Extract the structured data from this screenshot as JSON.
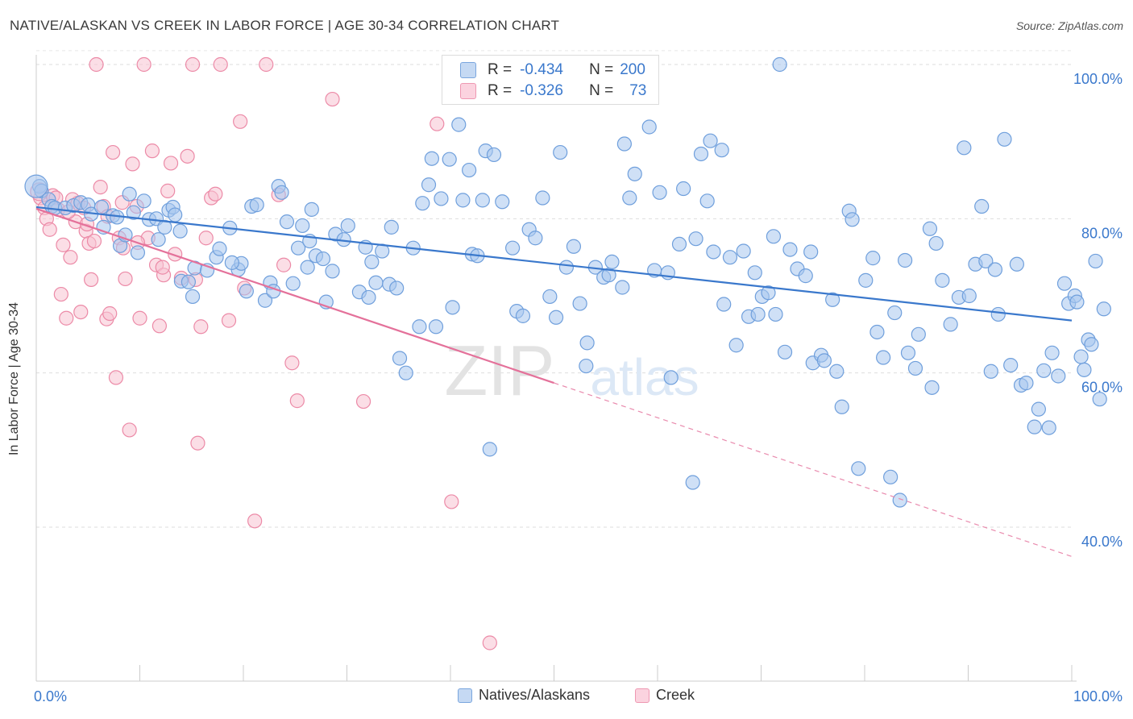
{
  "title": "NATIVE/ALASKAN VS CREEK IN LABOR FORCE | AGE 30-34 CORRELATION CHART",
  "source": "Source: ZipAtlas.com",
  "watermark": {
    "part1": "ZIP",
    "part2": "atlas"
  },
  "legend_top": {
    "rows": [
      {
        "r_label": "R =",
        "r_value": "-0.434",
        "n_label": "N =",
        "n_value": "200",
        "color": "#8ab4e8"
      },
      {
        "r_label": "R =",
        "r_value": "-0.326",
        "n_label": "N =",
        "n_value": "73",
        "color": "#f5a9bf"
      }
    ]
  },
  "legend_bottom": [
    {
      "label": "Natives/Alaskans",
      "color": "#a8c6ee",
      "border": "#6f9fdc"
    },
    {
      "label": "Creek",
      "color": "#f8c3d2",
      "border": "#ec8aa7"
    }
  ],
  "chart_data": {
    "type": "scatter",
    "title": "NATIVE/ALASKAN VS CREEK IN LABOR FORCE | AGE 30-34 CORRELATION CHART",
    "xlabel": "",
    "ylabel": "In Labor Force | Age 30-34",
    "xlim": [
      0,
      100
    ],
    "ylim": [
      20,
      102
    ],
    "x_tick_labels": [
      "0.0%",
      "100.0%"
    ],
    "y_tick_labels": [
      "100.0%",
      "80.0%",
      "60.0%",
      "40.0%"
    ],
    "y_tick_values": [
      100,
      80,
      60,
      40
    ],
    "grid": true,
    "legend_position": "top-center",
    "series": [
      {
        "name": "Natives/Alaskans",
        "color": "#6f9fdc",
        "fill": "#a8c6ee",
        "trend": {
          "x0": 0,
          "y0": 81.5,
          "x1": 100,
          "y1": 66.8
        },
        "points": [
          [
            0.2,
            84.2
          ],
          [
            0.5,
            83.6
          ],
          [
            1.2,
            82.5
          ],
          [
            1.5,
            81.6
          ],
          [
            1.8,
            81.4
          ],
          [
            2.8,
            81.4
          ],
          [
            3.6,
            81.7
          ],
          [
            4.3,
            82.1
          ],
          [
            5.0,
            81.8
          ],
          [
            5.3,
            80.6
          ],
          [
            6.3,
            81.5
          ],
          [
            6.5,
            78.9
          ],
          [
            7.4,
            80.4
          ],
          [
            7.8,
            80.2
          ],
          [
            8.1,
            76.5
          ],
          [
            9.0,
            83.2
          ],
          [
            9.4,
            80.8
          ],
          [
            9.8,
            75.6
          ],
          [
            10.4,
            82.3
          ],
          [
            10.9,
            79.9
          ],
          [
            11.6,
            80.0
          ],
          [
            11.8,
            77.3
          ],
          [
            12.4,
            78.9
          ],
          [
            12.8,
            81.1
          ],
          [
            13.2,
            81.5
          ],
          [
            13.4,
            80.5
          ],
          [
            13.9,
            78.4
          ],
          [
            14.0,
            71.9
          ],
          [
            14.7,
            71.8
          ],
          [
            15.1,
            69.9
          ],
          [
            15.3,
            73.6
          ],
          [
            16.5,
            73.3
          ],
          [
            17.4,
            75.0
          ],
          [
            17.7,
            76.1
          ],
          [
            18.7,
            78.8
          ],
          [
            19.5,
            73.4
          ],
          [
            19.8,
            74.2
          ],
          [
            20.3,
            70.6
          ],
          [
            20.8,
            81.6
          ],
          [
            21.3,
            81.8
          ],
          [
            22.1,
            69.4
          ],
          [
            22.6,
            71.7
          ],
          [
            22.9,
            70.6
          ],
          [
            23.4,
            84.2
          ],
          [
            23.7,
            83.4
          ],
          [
            24.2,
            79.6
          ],
          [
            24.8,
            71.6
          ],
          [
            25.3,
            76.2
          ],
          [
            25.7,
            79.1
          ],
          [
            26.2,
            73.7
          ],
          [
            26.6,
            81.2
          ],
          [
            27.0,
            75.2
          ],
          [
            27.7,
            74.8
          ],
          [
            28.0,
            69.2
          ],
          [
            28.6,
            73.2
          ],
          [
            28.9,
            78.0
          ],
          [
            29.7,
            77.3
          ],
          [
            30.1,
            79.1
          ],
          [
            31.2,
            70.5
          ],
          [
            31.8,
            76.3
          ],
          [
            32.1,
            69.8
          ],
          [
            32.4,
            74.4
          ],
          [
            32.8,
            71.7
          ],
          [
            33.4,
            75.8
          ],
          [
            34.1,
            71.5
          ],
          [
            34.8,
            71.0
          ],
          [
            35.1,
            61.9
          ],
          [
            34.3,
            78.9
          ],
          [
            36.4,
            76.2
          ],
          [
            37.0,
            66.0
          ],
          [
            37.3,
            82.0
          ],
          [
            37.9,
            84.4
          ],
          [
            38.2,
            87.8
          ],
          [
            38.6,
            66.0
          ],
          [
            39.1,
            82.6
          ],
          [
            39.9,
            87.7
          ],
          [
            40.2,
            68.5
          ],
          [
            40.8,
            92.2
          ],
          [
            41.2,
            82.4
          ],
          [
            41.8,
            86.3
          ],
          [
            42.1,
            75.4
          ],
          [
            42.6,
            75.2
          ],
          [
            43.1,
            82.4
          ],
          [
            43.4,
            88.8
          ],
          [
            43.8,
            50.1
          ],
          [
            44.2,
            88.3
          ],
          [
            45.0,
            82.2
          ],
          [
            46.0,
            76.2
          ],
          [
            46.4,
            68.0
          ],
          [
            47.0,
            67.4
          ],
          [
            47.6,
            78.6
          ],
          [
            48.2,
            77.5
          ],
          [
            48.9,
            82.7
          ],
          [
            49.6,
            69.9
          ],
          [
            50.2,
            67.2
          ],
          [
            50.6,
            88.6
          ],
          [
            51.2,
            73.7
          ],
          [
            51.9,
            76.4
          ],
          [
            52.5,
            69.0
          ],
          [
            53.1,
            60.9
          ],
          [
            53.2,
            63.9
          ],
          [
            54.0,
            73.7
          ],
          [
            54.8,
            72.4
          ],
          [
            55.3,
            72.7
          ],
          [
            55.6,
            74.4
          ],
          [
            56.6,
            71.1
          ],
          [
            56.8,
            89.7
          ],
          [
            57.3,
            82.7
          ],
          [
            57.8,
            85.8
          ],
          [
            59.2,
            91.9
          ],
          [
            59.7,
            73.3
          ],
          [
            60.2,
            83.4
          ],
          [
            61.3,
            59.4
          ],
          [
            62.1,
            76.7
          ],
          [
            62.5,
            83.9
          ],
          [
            63.4,
            45.8
          ],
          [
            63.7,
            77.4
          ],
          [
            64.2,
            88.4
          ],
          [
            64.8,
            82.3
          ],
          [
            65.1,
            90.1
          ],
          [
            65.4,
            75.7
          ],
          [
            66.2,
            88.9
          ],
          [
            66.4,
            68.9
          ],
          [
            67.0,
            75.0
          ],
          [
            67.6,
            63.6
          ],
          [
            68.3,
            75.8
          ],
          [
            68.8,
            67.3
          ],
          [
            69.4,
            73.0
          ],
          [
            69.7,
            67.6
          ],
          [
            70.1,
            69.9
          ],
          [
            70.7,
            70.4
          ],
          [
            71.2,
            77.7
          ],
          [
            71.4,
            67.6
          ],
          [
            71.8,
            100.0
          ],
          [
            72.3,
            62.7
          ],
          [
            72.8,
            76.0
          ],
          [
            73.5,
            73.5
          ],
          [
            74.3,
            72.6
          ],
          [
            74.8,
            75.7
          ],
          [
            75.0,
            61.3
          ],
          [
            75.8,
            62.3
          ],
          [
            76.1,
            61.6
          ],
          [
            76.9,
            69.5
          ],
          [
            77.3,
            60.2
          ],
          [
            77.8,
            55.6
          ],
          [
            78.5,
            81.0
          ],
          [
            78.8,
            79.9
          ],
          [
            79.4,
            47.6
          ],
          [
            80.1,
            72.0
          ],
          [
            80.8,
            74.9
          ],
          [
            81.2,
            65.3
          ],
          [
            81.8,
            62.0
          ],
          [
            82.5,
            46.5
          ],
          [
            82.9,
            67.8
          ],
          [
            83.4,
            43.5
          ],
          [
            83.9,
            74.6
          ],
          [
            84.2,
            62.6
          ],
          [
            84.9,
            60.6
          ],
          [
            85.2,
            65.0
          ],
          [
            86.3,
            78.7
          ],
          [
            86.5,
            58.1
          ],
          [
            86.9,
            76.8
          ],
          [
            87.5,
            72.0
          ],
          [
            88.3,
            66.3
          ],
          [
            89.1,
            69.8
          ],
          [
            89.6,
            89.2
          ],
          [
            90.1,
            70.0
          ],
          [
            90.7,
            74.1
          ],
          [
            91.3,
            81.6
          ],
          [
            91.7,
            74.5
          ],
          [
            92.2,
            60.2
          ],
          [
            92.9,
            67.6
          ],
          [
            93.5,
            90.3
          ],
          [
            94.1,
            61.0
          ],
          [
            94.7,
            74.1
          ],
          [
            95.1,
            58.4
          ],
          [
            95.6,
            58.7
          ],
          [
            96.4,
            53.0
          ],
          [
            96.8,
            55.3
          ],
          [
            97.3,
            60.3
          ],
          [
            97.8,
            52.9
          ],
          [
            98.1,
            62.6
          ],
          [
            98.7,
            59.6
          ],
          [
            99.3,
            71.6
          ],
          [
            99.7,
            69.0
          ],
          [
            100.3,
            70.0
          ],
          [
            100.9,
            62.1
          ],
          [
            101.2,
            60.4
          ],
          [
            101.6,
            64.3
          ],
          [
            101.9,
            63.7
          ],
          [
            102.3,
            74.5
          ],
          [
            102.7,
            56.6
          ],
          [
            103.1,
            68.3
          ],
          [
            100.5,
            69.2
          ],
          [
            92.6,
            73.4
          ],
          [
            61.0,
            73.0
          ],
          [
            35.7,
            60.0
          ],
          [
            26.4,
            77.1
          ],
          [
            18.9,
            74.3
          ],
          [
            8.6,
            77.9
          ]
        ]
      },
      {
        "name": "Creek",
        "color": "#ec8aa7",
        "fill": "#f8c3d2",
        "trend": {
          "x0": 0,
          "y0": 81.3,
          "x1": 50,
          "y1": 58.7
        },
        "trend_dashed": {
          "x0": 50,
          "y0": 58.7,
          "x1": 100,
          "y1": 36.2
        },
        "points": [
          [
            0.4,
            82.7
          ],
          [
            0.8,
            81.4
          ],
          [
            1.0,
            80.0
          ],
          [
            1.3,
            78.6
          ],
          [
            1.6,
            83.0
          ],
          [
            1.9,
            82.7
          ],
          [
            2.1,
            81.2
          ],
          [
            2.4,
            70.2
          ],
          [
            2.6,
            76.6
          ],
          [
            2.9,
            67.1
          ],
          [
            3.3,
            75.0
          ],
          [
            3.5,
            82.5
          ],
          [
            3.8,
            79.6
          ],
          [
            4.0,
            82.0
          ],
          [
            4.3,
            67.9
          ],
          [
            4.6,
            81.4
          ],
          [
            4.8,
            78.4
          ],
          [
            5.1,
            76.8
          ],
          [
            5.3,
            72.1
          ],
          [
            5.6,
            77.1
          ],
          [
            5.8,
            100.0
          ],
          [
            6.2,
            84.1
          ],
          [
            6.5,
            81.6
          ],
          [
            6.8,
            67.0
          ],
          [
            7.1,
            67.7
          ],
          [
            7.4,
            88.6
          ],
          [
            7.7,
            59.4
          ],
          [
            8.0,
            77.5
          ],
          [
            8.3,
            82.1
          ],
          [
            8.6,
            72.2
          ],
          [
            9.0,
            52.6
          ],
          [
            9.3,
            87.1
          ],
          [
            9.7,
            81.6
          ],
          [
            10.0,
            67.1
          ],
          [
            10.4,
            100.0
          ],
          [
            10.8,
            77.5
          ],
          [
            11.2,
            88.8
          ],
          [
            11.6,
            74.0
          ],
          [
            11.9,
            66.1
          ],
          [
            12.3,
            72.7
          ],
          [
            12.7,
            83.6
          ],
          [
            13.0,
            87.2
          ],
          [
            13.4,
            75.4
          ],
          [
            14.0,
            72.3
          ],
          [
            14.6,
            88.1
          ],
          [
            15.1,
            100.0
          ],
          [
            15.6,
            50.9
          ],
          [
            15.9,
            66.0
          ],
          [
            16.4,
            77.5
          ],
          [
            16.9,
            82.7
          ],
          [
            17.3,
            83.2
          ],
          [
            17.8,
            100.0
          ],
          [
            18.6,
            66.8
          ],
          [
            19.7,
            92.6
          ],
          [
            20.1,
            71.0
          ],
          [
            21.1,
            40.8
          ],
          [
            22.2,
            100.0
          ],
          [
            23.4,
            83.1
          ],
          [
            23.9,
            74.0
          ],
          [
            24.7,
            61.3
          ],
          [
            25.2,
            56.4
          ],
          [
            28.6,
            95.5
          ],
          [
            31.6,
            56.3
          ],
          [
            38.7,
            92.3
          ],
          [
            40.1,
            43.3
          ],
          [
            43.8,
            25.0
          ],
          [
            8.4,
            76.2
          ],
          [
            3.1,
            80.9
          ],
          [
            6.9,
            80.3
          ],
          [
            9.8,
            76.9
          ],
          [
            15.4,
            72.1
          ],
          [
            12.2,
            73.7
          ],
          [
            4.9,
            79.3
          ]
        ]
      }
    ]
  }
}
